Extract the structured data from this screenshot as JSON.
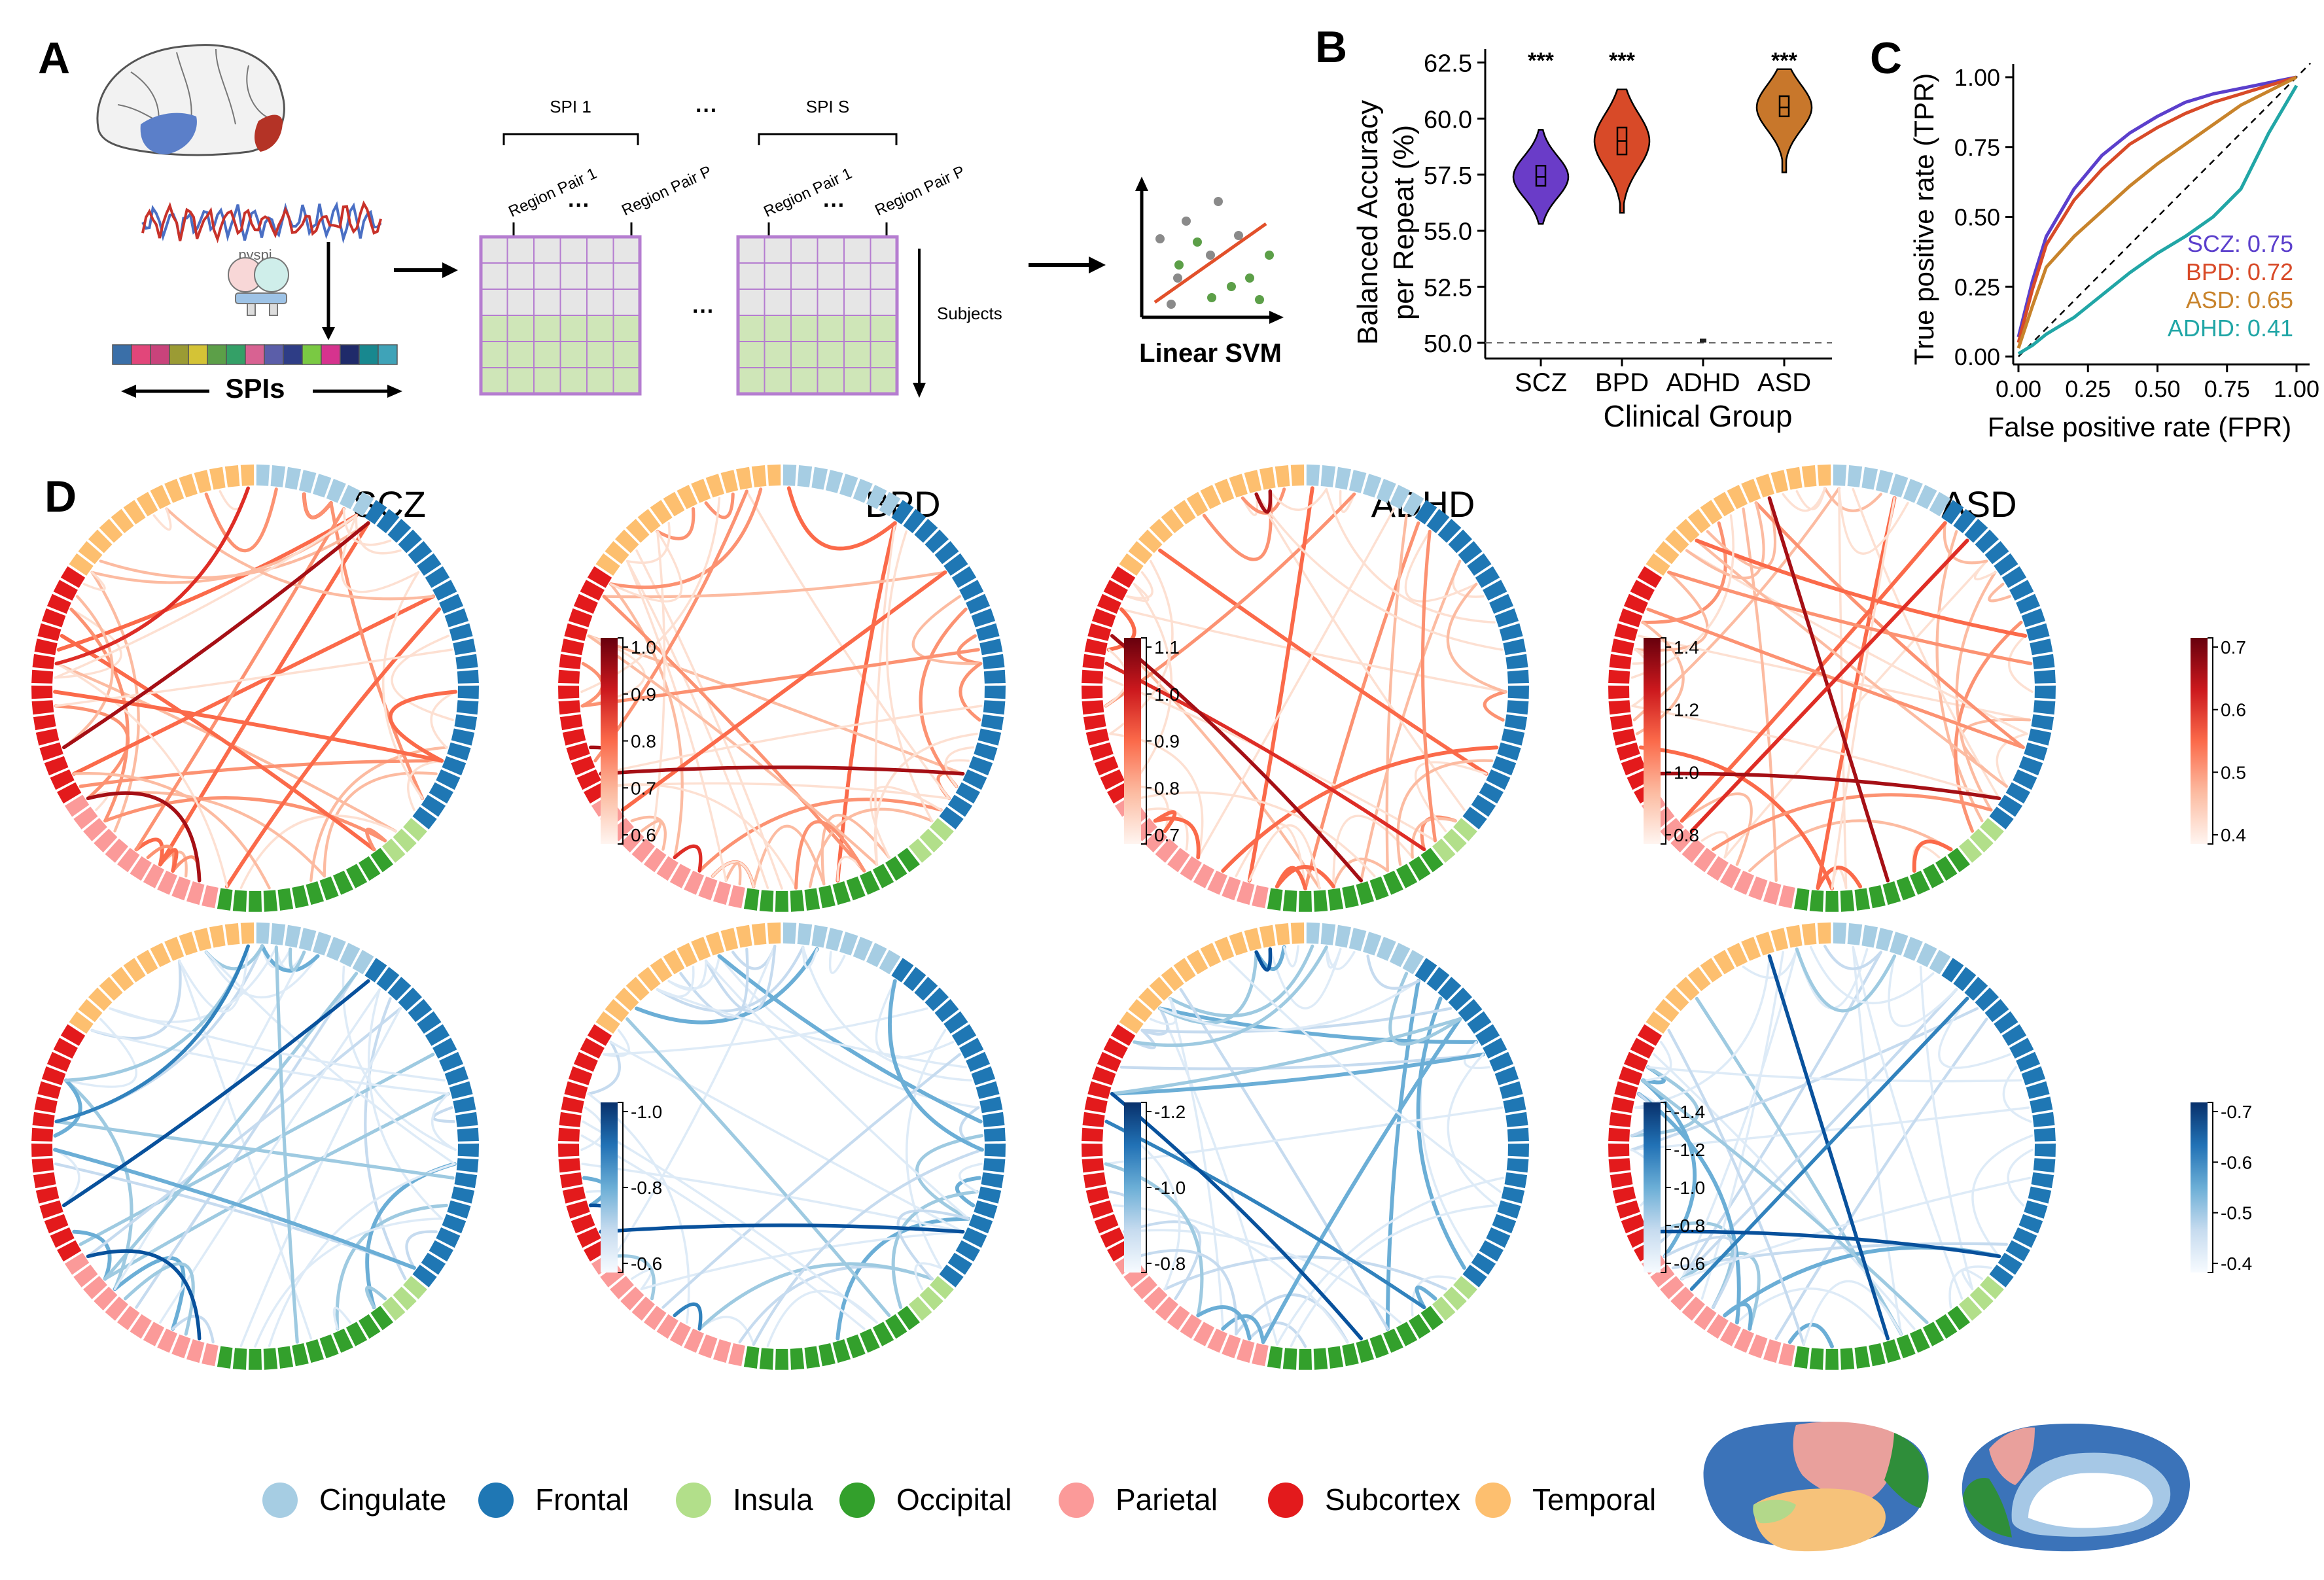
{
  "panels": {
    "A": "A",
    "B": "B",
    "C": "C",
    "D": "D"
  },
  "panel_a": {
    "pyspi_label": "pyspi",
    "spis_label": "SPIs",
    "spi1_label": "SPI 1",
    "spis_end_label": "SPI S",
    "ellipsis": "···",
    "region_pair_1": "Region Pair 1",
    "region_pair_p": "Region Pair P",
    "subjects_label": "Subjects",
    "svm_label": "Linear SVM",
    "brain_colors": {
      "frontal": "#5b7fc9",
      "temporal_highlight": "#b43326"
    },
    "spi_bar_colors": [
      "#3a6fa8",
      "#e2467a",
      "#c9437b",
      "#9b9b34",
      "#d4c336",
      "#5c9f48",
      "#34a067",
      "#d86292",
      "#5b5ea9",
      "#2e3d86",
      "#7ac943",
      "#d6338e",
      "#1f2a6a",
      "#18888f",
      "#3fa3b8"
    ]
  },
  "chart_data": [
    {
      "type": "violin",
      "ylabel": "Balanced Accuracy\nper Repeat (%)",
      "xlabel": "Clinical Group",
      "categories": [
        "SCZ",
        "BPD",
        "ADHD",
        "ASD"
      ],
      "colors": [
        "#6a3cc8",
        "#d84a28",
        "#222222",
        "#c8772b"
      ],
      "ylim": [
        49.3,
        63.1
      ],
      "yticks": [
        "50.0",
        "52.5",
        "55.0",
        "57.5",
        "60.0",
        "62.5"
      ],
      "yticks_values": [
        50.0,
        52.5,
        55.0,
        57.5,
        60.0,
        62.5
      ],
      "chance_line": 50.0,
      "distributions": [
        {
          "min": 55.3,
          "max": 59.5,
          "median": 57.4,
          "q1": 57.0,
          "q3": 57.9
        },
        {
          "min": 55.8,
          "max": 61.3,
          "median": 59.0,
          "q1": 58.4,
          "q3": 59.6
        },
        {
          "min": 50.0,
          "max": 50.1,
          "median": 50.0,
          "q1": 50.0,
          "q3": 50.1
        },
        {
          "min": 57.6,
          "max": 62.2,
          "median": 60.5,
          "q1": 60.1,
          "q3": 61.0
        }
      ],
      "significance": [
        "***",
        "***",
        "",
        "***"
      ]
    },
    {
      "type": "line",
      "xlabel": "False positive rate (FPR)",
      "ylabel": "True positive rate (TPR)",
      "xlim": [
        0,
        1
      ],
      "ylim": [
        0,
        1
      ],
      "xticks": [
        "0.00",
        "0.25",
        "0.50",
        "0.75",
        "1.00"
      ],
      "yticks": [
        "0.00",
        "0.25",
        "0.50",
        "0.75",
        "1.00"
      ],
      "series": [
        {
          "name": "SCZ: 0.75",
          "color": "#5b3fcc",
          "x": [
            0,
            0.05,
            0.1,
            0.2,
            0.3,
            0.4,
            0.5,
            0.6,
            0.7,
            0.8,
            0.9,
            1.0
          ],
          "y": [
            0.07,
            0.27,
            0.43,
            0.6,
            0.72,
            0.8,
            0.86,
            0.91,
            0.94,
            0.96,
            0.98,
            1.0
          ]
        },
        {
          "name": "BPD: 0.72",
          "color": "#d84a28",
          "x": [
            0,
            0.05,
            0.1,
            0.2,
            0.3,
            0.4,
            0.5,
            0.6,
            0.7,
            0.8,
            0.9,
            1.0
          ],
          "y": [
            0.05,
            0.24,
            0.4,
            0.56,
            0.67,
            0.76,
            0.82,
            0.87,
            0.91,
            0.94,
            0.97,
            1.0
          ]
        },
        {
          "name": "ASD: 0.65",
          "color": "#c8832b",
          "x": [
            0,
            0.05,
            0.1,
            0.2,
            0.3,
            0.4,
            0.5,
            0.6,
            0.7,
            0.8,
            0.9,
            1.0
          ],
          "y": [
            0.03,
            0.18,
            0.32,
            0.43,
            0.52,
            0.61,
            0.69,
            0.76,
            0.83,
            0.9,
            0.95,
            1.0
          ]
        },
        {
          "name": "ADHD: 0.41",
          "color": "#21a6a6",
          "x": [
            0,
            0.05,
            0.1,
            0.2,
            0.3,
            0.4,
            0.5,
            0.6,
            0.7,
            0.8,
            0.9,
            1.0
          ],
          "y": [
            0.01,
            0.04,
            0.08,
            0.14,
            0.22,
            0.3,
            0.37,
            0.43,
            0.5,
            0.6,
            0.8,
            0.97
          ]
        }
      ],
      "diagonal": true
    }
  ],
  "panel_d": {
    "groups": [
      "SCZ",
      "BPD",
      "ADHD",
      "ASD"
    ],
    "colorbars_pos": [
      {
        "ticks": [
          "1.0",
          "0.9",
          "0.8",
          "0.7",
          "0.6"
        ]
      },
      {
        "ticks": [
          "1.1",
          "1.0",
          "0.9",
          "0.8",
          "0.7"
        ]
      },
      {
        "ticks": [
          "1.4",
          "1.2",
          "1.0",
          "0.8"
        ]
      },
      {
        "ticks": [
          "0.7",
          "0.6",
          "0.5",
          "0.4"
        ]
      }
    ],
    "colorbars_neg": [
      {
        "ticks": [
          "-1.0",
          "-0.8",
          "-0.6"
        ]
      },
      {
        "ticks": [
          "-1.2",
          "-1.0",
          "-0.8"
        ]
      },
      {
        "ticks": [
          "-1.4",
          "-1.2",
          "-1.0",
          "-0.8",
          "-0.6"
        ]
      },
      {
        "ticks": [
          "-0.7",
          "-0.6",
          "-0.5",
          "-0.4"
        ]
      }
    ],
    "regions": [
      {
        "name": "Cingulate",
        "color": "#a6cde3"
      },
      {
        "name": "Frontal",
        "color": "#1f77b4"
      },
      {
        "name": "Insula",
        "color": "#b2df8a"
      },
      {
        "name": "Occipital",
        "color": "#33a02c"
      },
      {
        "name": "Parietal",
        "color": "#fb9a99"
      },
      {
        "name": "Subcortex",
        "color": "#e31a1c"
      },
      {
        "name": "Temporal",
        "color": "#fdbf6f"
      }
    ]
  }
}
